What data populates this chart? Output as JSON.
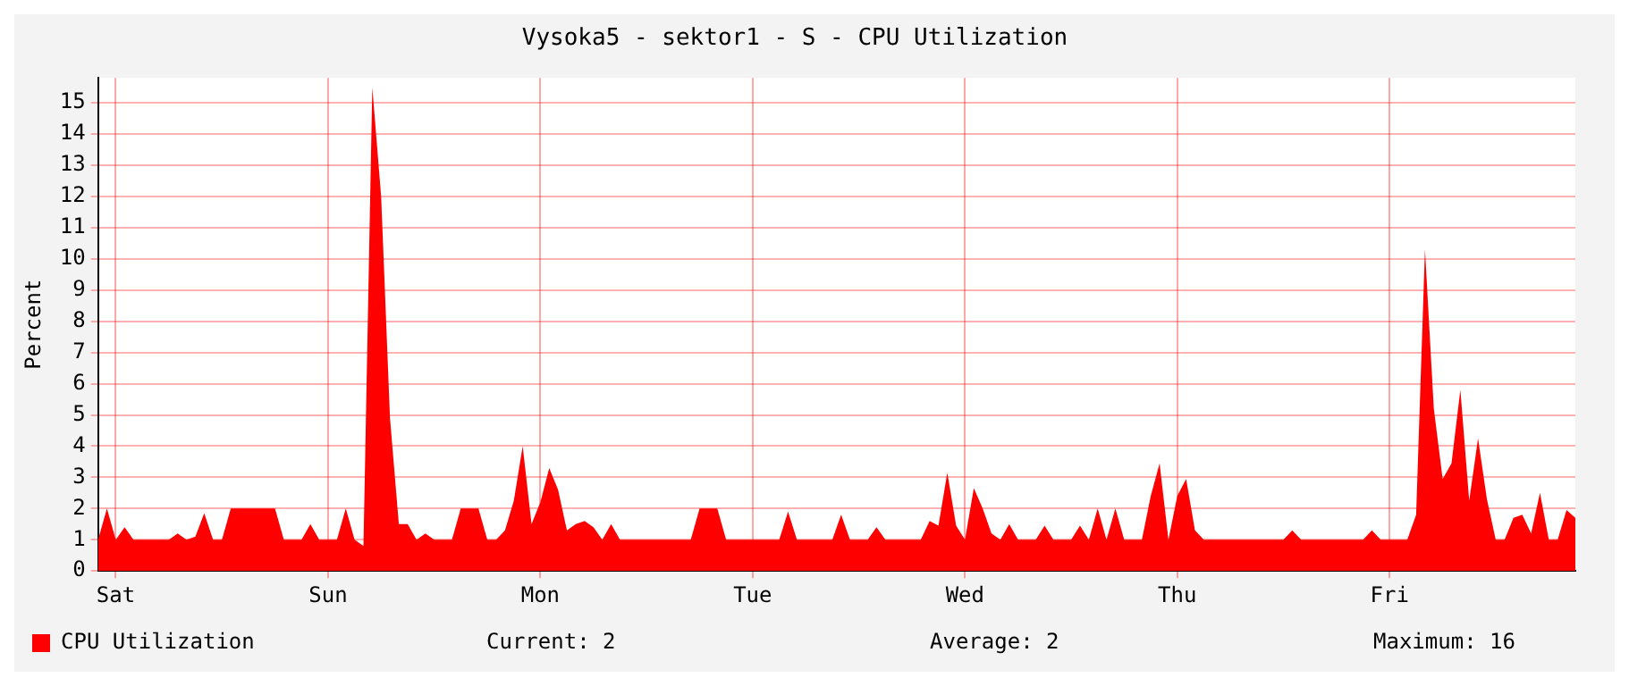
{
  "chart_data": {
    "type": "area",
    "title": "Vysoka5 - sektor1 - S - CPU Utilization",
    "ylabel": "Percent",
    "categories": [
      null,
      null,
      "Sat",
      null,
      null,
      null,
      null,
      null,
      null,
      null,
      null,
      null,
      null,
      null,
      null,
      null,
      null,
      null,
      null,
      null,
      null,
      null,
      null,
      null,
      null,
      null,
      "Sun",
      null,
      null,
      null,
      null,
      null,
      null,
      null,
      null,
      null,
      null,
      null,
      null,
      null,
      null,
      null,
      null,
      null,
      null,
      null,
      null,
      null,
      null,
      null,
      "Mon",
      null,
      null,
      null,
      null,
      null,
      null,
      null,
      null,
      null,
      null,
      null,
      null,
      null,
      null,
      null,
      null,
      null,
      null,
      null,
      null,
      null,
      null,
      null,
      "Tue",
      null,
      null,
      null,
      null,
      null,
      null,
      null,
      null,
      null,
      null,
      null,
      null,
      null,
      null,
      null,
      null,
      null,
      null,
      null,
      null,
      null,
      null,
      null,
      "Wed",
      null,
      null,
      null,
      null,
      null,
      null,
      null,
      null,
      null,
      null,
      null,
      null,
      null,
      null,
      null,
      null,
      null,
      null,
      null,
      null,
      null,
      null,
      null,
      "Thu",
      null,
      null,
      null,
      null,
      null,
      null,
      null,
      null,
      null,
      null,
      null,
      null,
      null,
      null,
      null,
      null,
      null,
      null,
      null,
      null,
      null,
      null,
      null,
      "Fri",
      null,
      null,
      null,
      null,
      null,
      null,
      null,
      null,
      null,
      null,
      null,
      null,
      null,
      null,
      null,
      null,
      null,
      null,
      null,
      null,
      null
    ],
    "series": [
      {
        "name": "CPU Utilization",
        "color": "#ff0000",
        "values": [
          1,
          2,
          1,
          1.4,
          1,
          1,
          1,
          1,
          1,
          1.2,
          1,
          1.1,
          1.85,
          1,
          1,
          2,
          2,
          2,
          2,
          2,
          2,
          1,
          1,
          1,
          1.5,
          1,
          1,
          1,
          2,
          1,
          0.8,
          15.5,
          12,
          4.9,
          1.5,
          1.5,
          1,
          1.2,
          1,
          1,
          1,
          2,
          2,
          2,
          1,
          1,
          1.3,
          2.25,
          4,
          1.5,
          2.2,
          3.3,
          2.6,
          1.3,
          1.5,
          1.6,
          1.4,
          1,
          1.5,
          1,
          1,
          1,
          1,
          1,
          1,
          1,
          1,
          1,
          2,
          2,
          2,
          1,
          1,
          1,
          1,
          1,
          1,
          1,
          1.9,
          1,
          1,
          1,
          1,
          1,
          1.8,
          1,
          1,
          1,
          1.4,
          1,
          1,
          1,
          1,
          1,
          1.6,
          1.45,
          3.15,
          1.45,
          1,
          2.65,
          2,
          1.2,
          1,
          1.5,
          1,
          1,
          1,
          1.45,
          1,
          1,
          1,
          1.45,
          1,
          2,
          1,
          2,
          1,
          1,
          1,
          2.4,
          3.45,
          1,
          2.4,
          2.95,
          1.3,
          1,
          1,
          1,
          1,
          1,
          1,
          1,
          1,
          1,
          1,
          1.3,
          1,
          1,
          1,
          1,
          1,
          1,
          1,
          1,
          1.3,
          1,
          1,
          1,
          1,
          1.8,
          10.3,
          5.2,
          2.95,
          3.45,
          5.8,
          2.25,
          4.25,
          2.3,
          1,
          1,
          1.7,
          1.8,
          1.2,
          2.5,
          1,
          1,
          1.95,
          1.7
        ]
      }
    ],
    "ylim": [
      0,
      15.8
    ],
    "yticks": [
      0,
      1,
      2,
      3,
      4,
      5,
      6,
      7,
      8,
      9,
      10,
      11,
      12,
      13,
      14,
      15
    ],
    "grid": true,
    "legend": "bottom left",
    "annotations": [
      "Current: 2",
      "Average: 2",
      "Maximum: 16"
    ]
  }
}
